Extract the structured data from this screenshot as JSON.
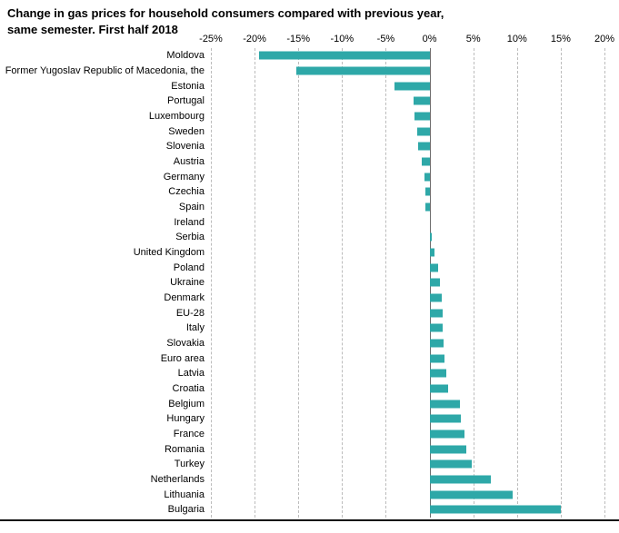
{
  "title": {
    "line1": "Change in gas prices for household consumers compared with previous year,",
    "line2": "same semester. First half 2018"
  },
  "chart_data": {
    "type": "bar",
    "orientation": "horizontal",
    "title": "Change in gas prices for household consumers compared with previous year, same semester. First half 2018",
    "xlabel": "",
    "ylabel": "",
    "xlim": [
      -25,
      20
    ],
    "x_ticks": [
      -25,
      -20,
      -15,
      -10,
      -5,
      0,
      5,
      10,
      15,
      20
    ],
    "x_tick_labels": [
      "-25%",
      "-20%",
      "-15%",
      "-10%",
      "-5%",
      "0%",
      "5%",
      "10%",
      "15%",
      "20%"
    ],
    "grid": "vertical-dashed",
    "legend": "none",
    "bar_color": "#2EA8A8",
    "categories": [
      "Moldova",
      "Former Yugoslav Republic of Macedonia, the",
      "Estonia",
      "Portugal",
      "Luxembourg",
      "Sweden",
      "Slovenia",
      "Austria",
      "Germany",
      "Czechia",
      "Spain",
      "Ireland",
      "Serbia",
      "United Kingdom",
      "Poland",
      "Ukraine",
      "Denmark",
      "EU-28",
      "Italy",
      "Slovakia",
      "Euro area",
      "Latvia",
      "Croatia",
      "Belgium",
      "Hungary",
      "France",
      "Romania",
      "Turkey",
      "Netherlands",
      "Lithuania",
      "Bulgaria"
    ],
    "values": [
      -19.5,
      -15.2,
      -4.0,
      -1.8,
      -1.7,
      -1.4,
      -1.3,
      -0.9,
      -0.6,
      -0.5,
      -0.5,
      0.0,
      0.3,
      0.6,
      1.0,
      1.2,
      1.4,
      1.5,
      1.5,
      1.6,
      1.7,
      1.9,
      2.1,
      3.5,
      3.6,
      4.0,
      4.2,
      4.8,
      7.0,
      9.5,
      15.0
    ]
  }
}
